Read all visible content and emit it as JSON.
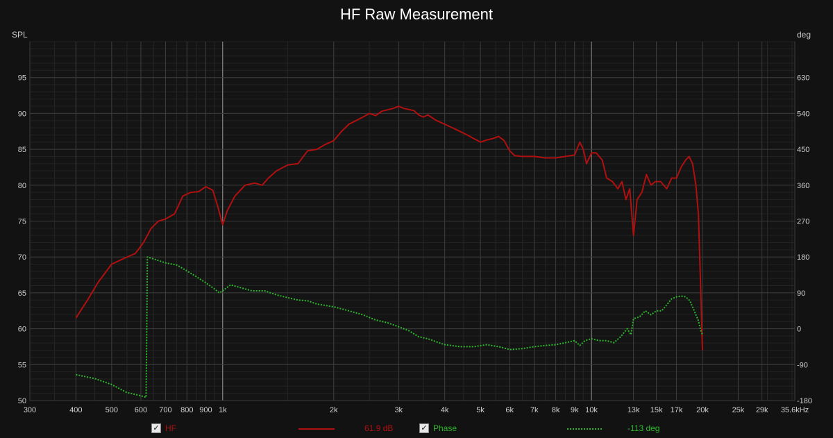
{
  "chart_data": {
    "type": "line",
    "title": "HF Raw Measurement",
    "ylabel": "SPL",
    "y2label": "deg",
    "xscale": "log",
    "xlim": [
      300,
      35600
    ],
    "ylim": [
      50,
      100
    ],
    "y2lim": [
      -180,
      720
    ],
    "grid": true,
    "x_ticks": [
      {
        "value": 300,
        "label": "300"
      },
      {
        "value": 400,
        "label": "400"
      },
      {
        "value": 500,
        "label": "500"
      },
      {
        "value": 600,
        "label": "600"
      },
      {
        "value": 700,
        "label": "700"
      },
      {
        "value": 800,
        "label": "800"
      },
      {
        "value": 900,
        "label": "900"
      },
      {
        "value": 1000,
        "label": "1k"
      },
      {
        "value": 2000,
        "label": "2k"
      },
      {
        "value": 3000,
        "label": "3k"
      },
      {
        "value": 4000,
        "label": "4k"
      },
      {
        "value": 5000,
        "label": "5k"
      },
      {
        "value": 6000,
        "label": "6k"
      },
      {
        "value": 7000,
        "label": "7k"
      },
      {
        "value": 8000,
        "label": "8k"
      },
      {
        "value": 9000,
        "label": "9k"
      },
      {
        "value": 10000,
        "label": "10k"
      },
      {
        "value": 13000,
        "label": "13k"
      },
      {
        "value": 15000,
        "label": "15k"
      },
      {
        "value": 17000,
        "label": "17k"
      },
      {
        "value": 20000,
        "label": "20k"
      },
      {
        "value": 25000,
        "label": "25k"
      },
      {
        "value": 29000,
        "label": "29k"
      },
      {
        "value": 35600,
        "label": "35.6kHz"
      }
    ],
    "y_ticks": [
      50,
      55,
      60,
      65,
      70,
      75,
      80,
      85,
      90,
      95
    ],
    "y2_ticks": [
      -180,
      -90,
      0,
      90,
      180,
      270,
      360,
      450,
      540,
      630
    ],
    "series": [
      {
        "name": "HF",
        "color": "#b01010",
        "axis": "left",
        "style": "solid",
        "points": [
          [
            400,
            61.5
          ],
          [
            430,
            64
          ],
          [
            460,
            66.5
          ],
          [
            500,
            69
          ],
          [
            540,
            69.8
          ],
          [
            580,
            70.5
          ],
          [
            610,
            72
          ],
          [
            640,
            74
          ],
          [
            670,
            75
          ],
          [
            700,
            75.3
          ],
          [
            740,
            76
          ],
          [
            780,
            78.5
          ],
          [
            820,
            79
          ],
          [
            860,
            79.1
          ],
          [
            900,
            79.8
          ],
          [
            940,
            79.3
          ],
          [
            970,
            77
          ],
          [
            1000,
            74.5
          ],
          [
            1030,
            76.5
          ],
          [
            1080,
            78.5
          ],
          [
            1150,
            80
          ],
          [
            1220,
            80.3
          ],
          [
            1280,
            80
          ],
          [
            1330,
            81
          ],
          [
            1400,
            82
          ],
          [
            1500,
            82.8
          ],
          [
            1600,
            83
          ],
          [
            1700,
            84.8
          ],
          [
            1800,
            85
          ],
          [
            1900,
            85.7
          ],
          [
            2000,
            86.2
          ],
          [
            2100,
            87.5
          ],
          [
            2200,
            88.5
          ],
          [
            2300,
            89
          ],
          [
            2400,
            89.5
          ],
          [
            2500,
            90
          ],
          [
            2600,
            89.7
          ],
          [
            2700,
            90.3
          ],
          [
            2800,
            90.5
          ],
          [
            2900,
            90.7
          ],
          [
            3000,
            91
          ],
          [
            3100,
            90.7
          ],
          [
            3300,
            90.4
          ],
          [
            3400,
            89.8
          ],
          [
            3500,
            89.5
          ],
          [
            3600,
            89.8
          ],
          [
            3800,
            89
          ],
          [
            4000,
            88.5
          ],
          [
            4200,
            88
          ],
          [
            4400,
            87.5
          ],
          [
            4600,
            87
          ],
          [
            4800,
            86.5
          ],
          [
            5000,
            86
          ],
          [
            5200,
            86.3
          ],
          [
            5400,
            86.5
          ],
          [
            5600,
            86.8
          ],
          [
            5800,
            86.2
          ],
          [
            6000,
            84.8
          ],
          [
            6200,
            84.1
          ],
          [
            6500,
            84
          ],
          [
            7000,
            84
          ],
          [
            7500,
            83.8
          ],
          [
            8000,
            83.8
          ],
          [
            8500,
            84
          ],
          [
            9000,
            84.2
          ],
          [
            9300,
            86
          ],
          [
            9500,
            85
          ],
          [
            9700,
            83
          ],
          [
            10000,
            84.5
          ],
          [
            10300,
            84.5
          ],
          [
            10700,
            83.5
          ],
          [
            11000,
            81
          ],
          [
            11400,
            80.5
          ],
          [
            11800,
            79.5
          ],
          [
            12100,
            80.5
          ],
          [
            12400,
            78
          ],
          [
            12700,
            79.5
          ],
          [
            13000,
            73
          ],
          [
            13300,
            78
          ],
          [
            13700,
            79
          ],
          [
            14100,
            81.5
          ],
          [
            14500,
            80
          ],
          [
            14900,
            80.5
          ],
          [
            15400,
            80.5
          ],
          [
            16000,
            79.5
          ],
          [
            16500,
            81
          ],
          [
            17000,
            81
          ],
          [
            17500,
            82.5
          ],
          [
            18000,
            83.5
          ],
          [
            18400,
            84
          ],
          [
            18800,
            83
          ],
          [
            19200,
            80
          ],
          [
            19500,
            76
          ],
          [
            19800,
            65
          ],
          [
            20000,
            57
          ]
        ]
      },
      {
        "name": "Phase",
        "color": "#2eb82e",
        "axis": "right",
        "style": "dotted",
        "points": [
          [
            400,
            -115
          ],
          [
            450,
            -125
          ],
          [
            500,
            -140
          ],
          [
            550,
            -160
          ],
          [
            600,
            -168
          ],
          [
            620,
            -172
          ],
          [
            625,
            180
          ],
          [
            650,
            175
          ],
          [
            700,
            165
          ],
          [
            750,
            160
          ],
          [
            800,
            145
          ],
          [
            850,
            130
          ],
          [
            900,
            115
          ],
          [
            950,
            100
          ],
          [
            980,
            90
          ],
          [
            1000,
            95
          ],
          [
            1050,
            110
          ],
          [
            1100,
            105
          ],
          [
            1200,
            95
          ],
          [
            1300,
            95
          ],
          [
            1400,
            85
          ],
          [
            1500,
            78
          ],
          [
            1600,
            72
          ],
          [
            1700,
            70
          ],
          [
            1800,
            62
          ],
          [
            2000,
            55
          ],
          [
            2200,
            45
          ],
          [
            2400,
            35
          ],
          [
            2600,
            22
          ],
          [
            2800,
            15
          ],
          [
            3000,
            5
          ],
          [
            3200,
            -5
          ],
          [
            3400,
            -20
          ],
          [
            3600,
            -25
          ],
          [
            4000,
            -40
          ],
          [
            4400,
            -45
          ],
          [
            4800,
            -45
          ],
          [
            5200,
            -40
          ],
          [
            5600,
            -45
          ],
          [
            6000,
            -52
          ],
          [
            6500,
            -50
          ],
          [
            7000,
            -45
          ],
          [
            7500,
            -42
          ],
          [
            8000,
            -40
          ],
          [
            8500,
            -35
          ],
          [
            9000,
            -30
          ],
          [
            9300,
            -42
          ],
          [
            9600,
            -30
          ],
          [
            10000,
            -25
          ],
          [
            10500,
            -30
          ],
          [
            11000,
            -30
          ],
          [
            11500,
            -35
          ],
          [
            12000,
            -20
          ],
          [
            12500,
            0
          ],
          [
            12800,
            -15
          ],
          [
            13000,
            25
          ],
          [
            13500,
            30
          ],
          [
            14000,
            45
          ],
          [
            14500,
            35
          ],
          [
            15000,
            45
          ],
          [
            15500,
            45
          ],
          [
            16000,
            60
          ],
          [
            16500,
            75
          ],
          [
            17000,
            80
          ],
          [
            17500,
            82
          ],
          [
            18000,
            80
          ],
          [
            18500,
            70
          ],
          [
            19000,
            45
          ],
          [
            19500,
            20
          ],
          [
            19800,
            -5
          ],
          [
            20000,
            -15
          ]
        ]
      }
    ],
    "legend": [
      {
        "label": "HF",
        "checked": true,
        "value": "61.9 dB",
        "color": "#b01010",
        "style": "solid"
      },
      {
        "label": "Phase",
        "checked": true,
        "value": "-113 deg",
        "color": "#2eb82e",
        "style": "dotted"
      }
    ],
    "legend_placement": "bottom"
  }
}
